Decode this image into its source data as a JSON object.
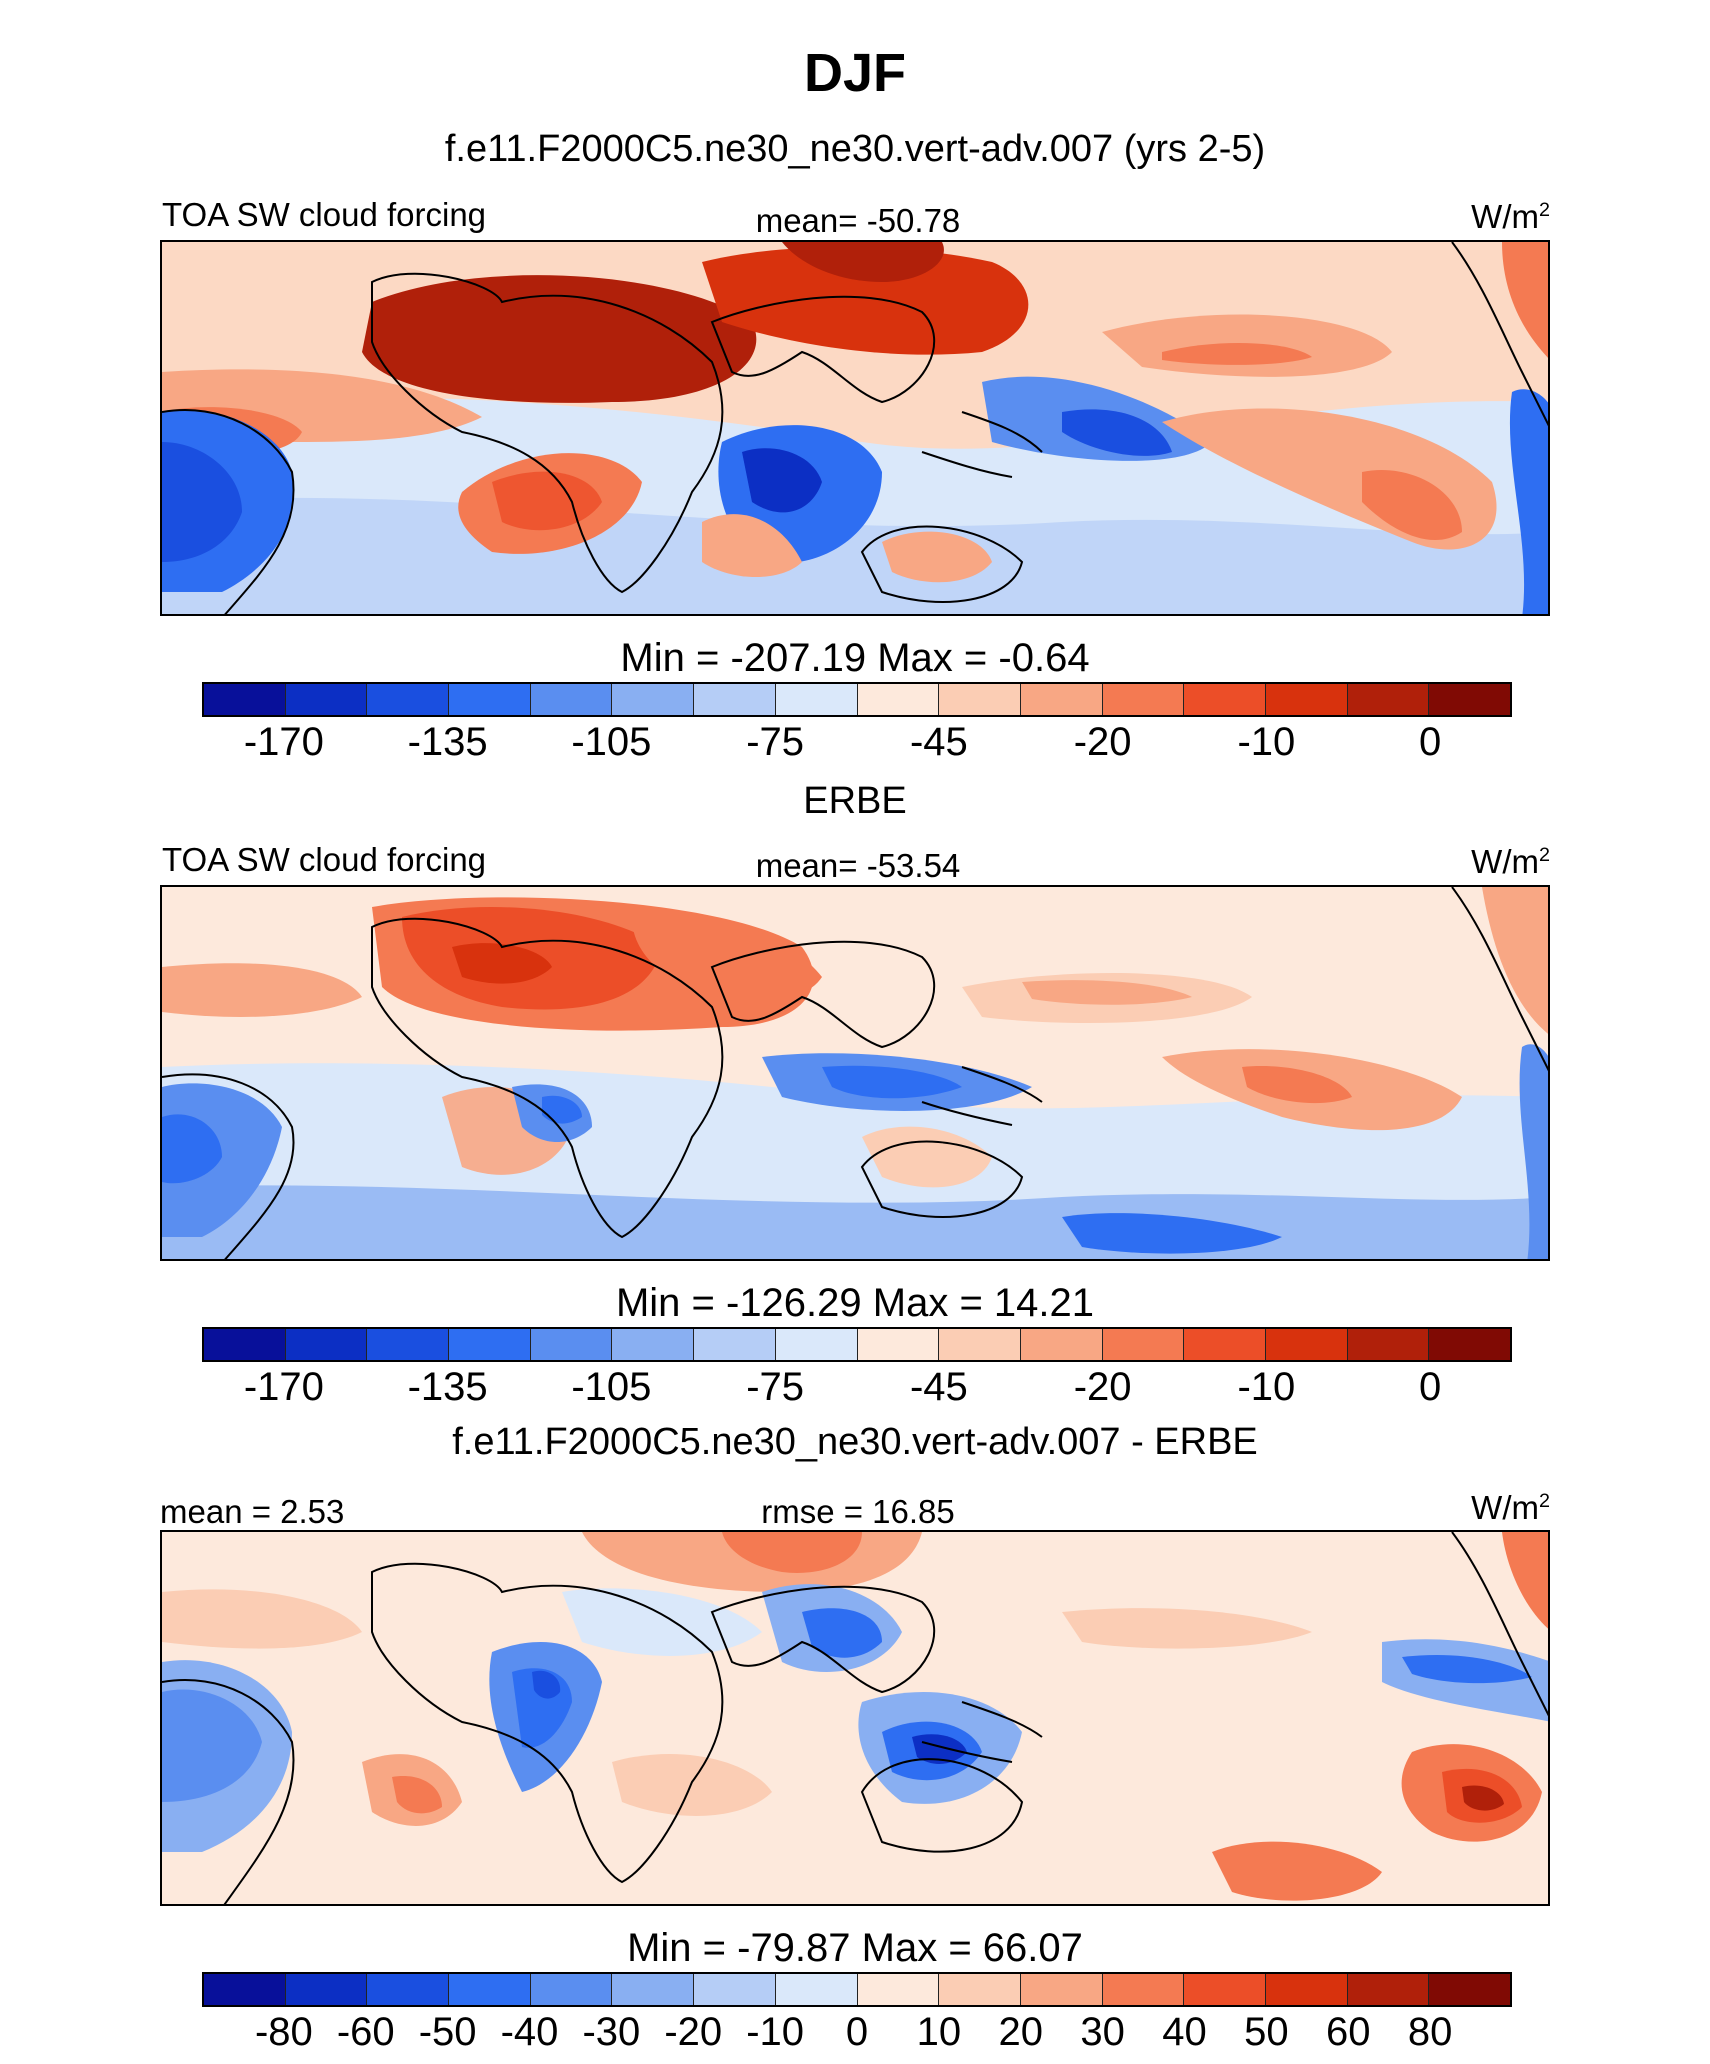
{
  "title": "DJF",
  "units": "W/m",
  "units_sup": "2",
  "panels": [
    {
      "title": "f.e11.F2000C5.ne30_ne30.vert-adv.007 (yrs 2-5)",
      "left_label": "TOA SW cloud forcing",
      "center_label": "mean= -50.78",
      "minmax": "Min = -207.19 Max =  -0.64"
    },
    {
      "title": "ERBE",
      "left_label": "TOA SW cloud forcing",
      "center_label": "mean= -53.54",
      "minmax": "Min = -126.29 Max =  14.21"
    },
    {
      "title": "f.e11.F2000C5.ne30_ne30.vert-adv.007 - ERBE",
      "left_label": "mean =   2.53",
      "center_label": "rmse =  16.85",
      "minmax": "Min = -79.87 Max =  66.07"
    }
  ],
  "chart_data": [
    {
      "type": "heatmap",
      "title": "f.e11.F2000C5.ne30_ne30.vert-adv.007 (yrs 2-5)",
      "variable": "TOA SW cloud forcing",
      "mean": -50.78,
      "min": -207.19,
      "max": -0.64,
      "colorbar_labels": [
        "-170",
        "-135",
        "-105",
        "-75",
        "-45",
        "-20",
        "-10",
        "0"
      ]
    },
    {
      "type": "heatmap",
      "title": "ERBE",
      "variable": "TOA SW cloud forcing",
      "mean": -53.54,
      "min": -126.29,
      "max": 14.21,
      "colorbar_labels": [
        "-170",
        "-135",
        "-105",
        "-75",
        "-45",
        "-20",
        "-10",
        "0"
      ]
    },
    {
      "type": "heatmap",
      "title": "f.e11.F2000C5.ne30_ne30.vert-adv.007 - ERBE",
      "mean": 2.53,
      "rmse": 16.85,
      "min": -79.87,
      "max": 66.07,
      "colorbar_labels": [
        "-80",
        "-60",
        "-50",
        "-40",
        "-30",
        "-20",
        "-10",
        "0",
        "10",
        "20",
        "30",
        "40",
        "50",
        "60",
        "80"
      ]
    }
  ],
  "colors": {
    "scale": [
      "#08109a",
      "#0c2fc4",
      "#1a4fe0",
      "#2e6ef2",
      "#5a8ef0",
      "#89aff2",
      "#b5cdf6",
      "#dae8fa",
      "#fde9dc",
      "#fbcdb4",
      "#f8a784",
      "#f47a52",
      "#ec4e28",
      "#d8320d",
      "#b0200a",
      "#800a04"
    ]
  }
}
